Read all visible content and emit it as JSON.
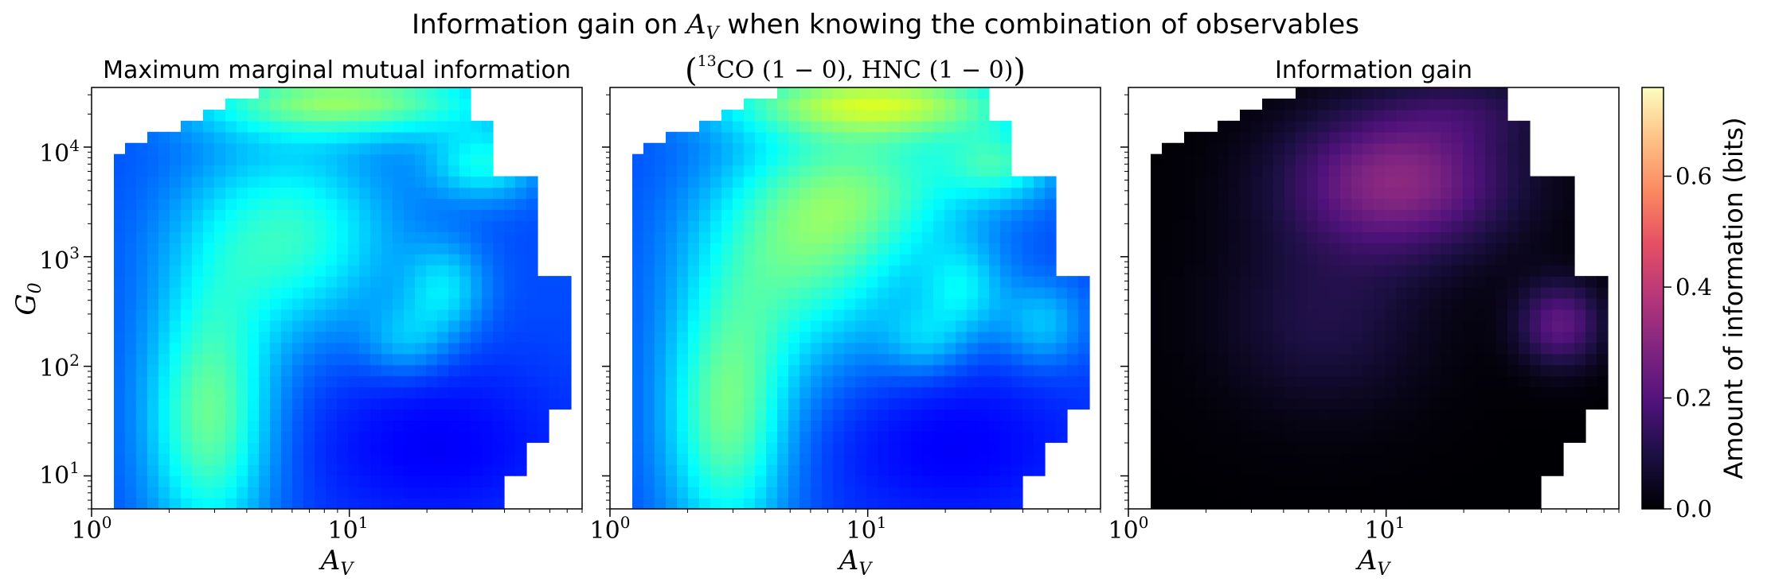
{
  "figure": {
    "title_prefix": "Information gain on ",
    "title_var": "A",
    "title_var_sub": "V",
    "title_suffix": " when knowing the combination of observables"
  },
  "colorbar": {
    "label": "Amount of information (bits)",
    "ticks": [
      "0.0",
      "0.2",
      "0.4",
      "0.6"
    ],
    "tick_values": [
      0.0,
      0.2,
      0.4,
      0.6
    ],
    "range": [
      0.0,
      0.76
    ],
    "colormap": "magma"
  },
  "chart_data": [
    {
      "type": "heatmap",
      "title": "Maximum marginal mutual information",
      "colormap": "jet",
      "x_scale": "log",
      "y_scale": "log",
      "xlim": [
        1,
        80
      ],
      "ylim": [
        5,
        35000
      ],
      "xlabel": "A",
      "xlabel_sub": "V",
      "ylabel": "G",
      "ylabel_sub": "0",
      "x_ticks": [
        {
          "base": "10",
          "exp": "0"
        },
        {
          "base": "10",
          "exp": "1"
        }
      ],
      "y_ticks": [
        {
          "base": "10",
          "exp": "1"
        },
        {
          "base": "10",
          "exp": "2"
        },
        {
          "base": "10",
          "exp": "3"
        },
        {
          "base": "10",
          "exp": "4"
        }
      ]
    },
    {
      "type": "heatmap",
      "title": "(¹³CO (1 − 0), HNC (1 − 0))",
      "title_parts": {
        "open": "(",
        "iso": "13",
        "a": "CO (1 − 0), HNC (1 − 0)",
        "close": ")"
      },
      "colormap": "jet",
      "x_scale": "log",
      "y_scale": "log",
      "xlim": [
        1,
        80
      ],
      "ylim": [
        5,
        35000
      ],
      "xlabel": "A",
      "xlabel_sub": "V",
      "x_ticks": [
        {
          "base": "10",
          "exp": "0"
        },
        {
          "base": "10",
          "exp": "1"
        }
      ]
    },
    {
      "type": "heatmap",
      "title": "Information gain",
      "colormap": "magma",
      "x_scale": "log",
      "y_scale": "log",
      "xlim": [
        1,
        80
      ],
      "ylim": [
        5,
        35000
      ],
      "xlabel": "A",
      "xlabel_sub": "V",
      "x_ticks": [
        {
          "base": "10",
          "exp": "0"
        },
        {
          "base": "10",
          "exp": "1"
        }
      ]
    }
  ]
}
